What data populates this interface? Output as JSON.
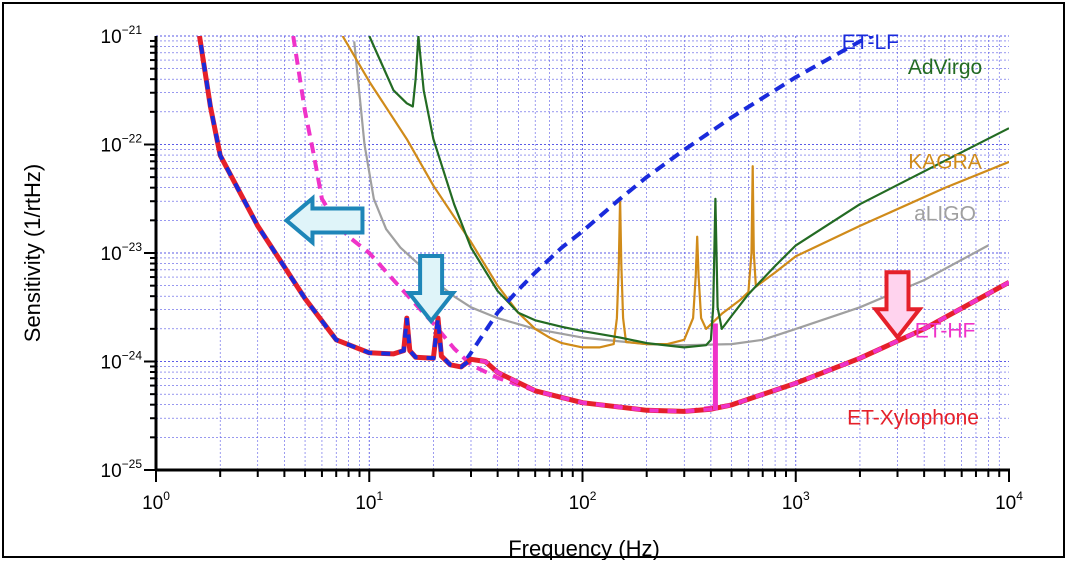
{
  "chart_data": {
    "type": "line",
    "title": "",
    "xlabel": "Frequency (Hz)",
    "ylabel": "Sensitivity (1/rtHz)",
    "xscale": "log",
    "yscale": "log",
    "xlim": [
      1,
      10000
    ],
    "ylim": [
      1e-25,
      1e-21
    ],
    "grid": true,
    "x_ticks": [
      {
        "base": "10",
        "exp": "0",
        "value": 1
      },
      {
        "base": "10",
        "exp": "1",
        "value": 10
      },
      {
        "base": "10",
        "exp": "2",
        "value": 100
      },
      {
        "base": "10",
        "exp": "3",
        "value": 1000
      },
      {
        "base": "10",
        "exp": "4",
        "value": 10000
      }
    ],
    "y_ticks": [
      {
        "base": "10",
        "exp": "−25",
        "value": 1e-25
      },
      {
        "base": "10",
        "exp": "−24",
        "value": 1e-24
      },
      {
        "base": "10",
        "exp": "−23",
        "value": 1e-23
      },
      {
        "base": "10",
        "exp": "−22",
        "value": 1e-22
      },
      {
        "base": "10",
        "exp": "−21",
        "value": 1e-21
      }
    ],
    "series": [
      {
        "name": "aLIGO",
        "color": "#a0a0a0",
        "dash": "solid",
        "width": 2.2,
        "label_pos": [
          3.7,
          -22.7
        ],
        "points": [
          [
            8.5,
            -21.05
          ],
          [
            9.5,
            -22.0
          ],
          [
            10.5,
            -22.5
          ],
          [
            12,
            -22.78
          ],
          [
            14,
            -22.95
          ],
          [
            17,
            -23.1
          ],
          [
            20,
            -23.25
          ],
          [
            25,
            -23.4
          ],
          [
            30,
            -23.5
          ],
          [
            40,
            -23.6
          ],
          [
            60,
            -23.7
          ],
          [
            100,
            -23.78
          ],
          [
            200,
            -23.84
          ],
          [
            300,
            -23.85
          ],
          [
            500,
            -23.84
          ],
          [
            700,
            -23.8
          ],
          [
            1000,
            -23.7
          ],
          [
            2000,
            -23.5
          ],
          [
            4000,
            -23.25
          ],
          [
            8000,
            -22.93
          ]
        ]
      },
      {
        "name": "KAGRA",
        "color": "#d08b1a",
        "dash": "solid",
        "width": 2.2,
        "label_pos": [
          3.7,
          -22.22
        ],
        "points": [
          [
            7.5,
            -21.0
          ],
          [
            10,
            -21.42
          ],
          [
            15,
            -21.95
          ],
          [
            20,
            -22.38
          ],
          [
            30,
            -22.9
          ],
          [
            40,
            -23.3
          ],
          [
            50,
            -23.55
          ],
          [
            60,
            -23.7
          ],
          [
            70,
            -23.78
          ],
          [
            80,
            -23.83
          ],
          [
            100,
            -23.87
          ],
          [
            120,
            -23.87
          ],
          [
            140,
            -23.84
          ],
          [
            145,
            -23.6
          ],
          [
            148,
            -23.1
          ],
          [
            150,
            -22.5
          ],
          [
            152,
            -23.1
          ],
          [
            155,
            -23.6
          ],
          [
            160,
            -23.82
          ],
          [
            200,
            -23.84
          ],
          [
            250,
            -23.84
          ],
          [
            300,
            -23.8
          ],
          [
            330,
            -23.6
          ],
          [
            340,
            -23.2
          ],
          [
            345,
            -22.85
          ],
          [
            350,
            -23.2
          ],
          [
            360,
            -23.6
          ],
          [
            380,
            -23.7
          ],
          [
            450,
            -23.56
          ],
          [
            550,
            -23.43
          ],
          [
            600,
            -23.36
          ],
          [
            620,
            -23.0
          ],
          [
            628,
            -22.2
          ],
          [
            636,
            -23.0
          ],
          [
            650,
            -23.31
          ],
          [
            800,
            -23.18
          ],
          [
            1000,
            -23.03
          ],
          [
            2000,
            -22.75
          ],
          [
            5000,
            -22.4
          ],
          [
            10000,
            -22.16
          ]
        ]
      },
      {
        "name": "AdVirgo",
        "color": "#236b23",
        "dash": "solid",
        "width": 2.2,
        "label_pos": [
          3.7,
          -21.35
        ],
        "points": [
          [
            10,
            -21.0
          ],
          [
            13,
            -21.5
          ],
          [
            15,
            -21.62
          ],
          [
            16,
            -21.65
          ],
          [
            16.5,
            -21.4
          ],
          [
            17,
            -21.0
          ],
          [
            18,
            -21.5
          ],
          [
            20,
            -21.95
          ],
          [
            25,
            -22.55
          ],
          [
            30,
            -22.95
          ],
          [
            40,
            -23.35
          ],
          [
            50,
            -23.55
          ],
          [
            60,
            -23.62
          ],
          [
            80,
            -23.68
          ],
          [
            100,
            -23.72
          ],
          [
            150,
            -23.78
          ],
          [
            200,
            -23.83
          ],
          [
            300,
            -23.87
          ],
          [
            380,
            -23.85
          ],
          [
            400,
            -23.8
          ],
          [
            410,
            -23.5
          ],
          [
            420,
            -22.5
          ],
          [
            430,
            -23.5
          ],
          [
            450,
            -23.7
          ],
          [
            500,
            -23.58
          ],
          [
            600,
            -23.38
          ],
          [
            800,
            -23.12
          ],
          [
            1000,
            -22.93
          ],
          [
            2000,
            -22.55
          ],
          [
            5000,
            -22.15
          ],
          [
            10000,
            -21.85
          ]
        ]
      },
      {
        "name": "ET-LF",
        "color": "#1a2bdc",
        "dash": "dashed",
        "width": 4,
        "label_pos": [
          3.35,
          -21.12
        ],
        "points": [
          [
            1.6,
            -21.0
          ],
          [
            1.8,
            -21.65
          ],
          [
            2,
            -22.1
          ],
          [
            3,
            -22.75
          ],
          [
            5,
            -23.42
          ],
          [
            7,
            -23.8
          ],
          [
            10,
            -23.92
          ],
          [
            13,
            -23.93
          ],
          [
            14.5,
            -23.9
          ],
          [
            15,
            -23.6
          ],
          [
            15.5,
            -23.9
          ],
          [
            16.5,
            -23.96
          ],
          [
            20,
            -23.97
          ],
          [
            21,
            -23.6
          ],
          [
            21.8,
            -23.95
          ],
          [
            24,
            -24.03
          ],
          [
            27,
            -24.05
          ],
          [
            30,
            -23.92
          ],
          [
            35,
            -23.72
          ],
          [
            40,
            -23.55
          ],
          [
            50,
            -23.34
          ],
          [
            60,
            -23.18
          ],
          [
            80,
            -22.95
          ],
          [
            100,
            -22.8
          ],
          [
            150,
            -22.5
          ],
          [
            200,
            -22.3
          ],
          [
            300,
            -22.05
          ],
          [
            500,
            -21.75
          ],
          [
            1000,
            -21.38
          ],
          [
            2000,
            -21.05
          ],
          [
            2300,
            -21.0
          ]
        ]
      },
      {
        "name": "ET-HF",
        "color": "#ef33c9",
        "dash": "dashed",
        "width": 4,
        "label_pos": [
          3.7,
          -23.78
        ],
        "points": [
          [
            4.4,
            -21.0
          ],
          [
            5,
            -21.7
          ],
          [
            5.5,
            -22.1
          ],
          [
            6,
            -22.5
          ],
          [
            7,
            -22.72
          ],
          [
            8,
            -22.85
          ],
          [
            10,
            -23.0
          ],
          [
            14,
            -23.32
          ],
          [
            20,
            -23.65
          ],
          [
            25,
            -23.88
          ],
          [
            30,
            -24.03
          ],
          [
            40,
            -24.15
          ],
          [
            60,
            -24.27
          ],
          [
            100,
            -24.38
          ],
          [
            200,
            -24.45
          ],
          [
            300,
            -24.46
          ],
          [
            500,
            -24.4
          ],
          [
            1000,
            -24.2
          ],
          [
            2000,
            -23.97
          ],
          [
            4000,
            -23.7
          ],
          [
            10000,
            -23.27
          ]
        ]
      },
      {
        "name": "ET-Xylophone",
        "color": "#e5202a",
        "dash": "solid",
        "width": 5,
        "label_pos": [
          3.55,
          -24.58
        ],
        "points": [
          [
            1.6,
            -21.0
          ],
          [
            1.8,
            -21.65
          ],
          [
            2,
            -22.1
          ],
          [
            3,
            -22.75
          ],
          [
            5,
            -23.42
          ],
          [
            7,
            -23.8
          ],
          [
            10,
            -23.92
          ],
          [
            13,
            -23.93
          ],
          [
            14.5,
            -23.9
          ],
          [
            15,
            -23.6
          ],
          [
            15.5,
            -23.9
          ],
          [
            16.5,
            -23.96
          ],
          [
            20,
            -23.97
          ],
          [
            21,
            -23.6
          ],
          [
            21.8,
            -23.95
          ],
          [
            24,
            -24.03
          ],
          [
            27,
            -24.05
          ],
          [
            30,
            -23.98
          ],
          [
            35,
            -24.0
          ],
          [
            40,
            -24.1
          ],
          [
            60,
            -24.27
          ],
          [
            100,
            -24.38
          ],
          [
            200,
            -24.45
          ],
          [
            300,
            -24.46
          ],
          [
            400,
            -24.44
          ],
          [
            500,
            -24.4
          ],
          [
            1000,
            -24.2
          ],
          [
            2000,
            -23.97
          ],
          [
            4000,
            -23.7
          ],
          [
            10000,
            -23.27
          ]
        ],
        "overlay": {
          "color": "#1a2bdc",
          "to_x": 30
        },
        "overlay2": {
          "color": "#ef33c9",
          "from_x": 30
        }
      }
    ],
    "annotations": [
      {
        "type": "vertical-line",
        "name": "et-hf-notch-line",
        "x": 420,
        "y_from": -24.45,
        "y_to": -23.65,
        "color": "#ef33c9"
      },
      {
        "type": "arrow-left",
        "name": "low-frequency-improvement-arrow",
        "x": 6.3,
        "y": -22.7,
        "fill": "#dff4f9",
        "stroke": "#1e86b8"
      },
      {
        "type": "arrow-down",
        "name": "mid-frequency-improvement-arrow",
        "x": 19.5,
        "y": -23.35,
        "fill": "#dff4f9",
        "stroke": "#1e86b8"
      },
      {
        "type": "arrow-down",
        "name": "high-frequency-improvement-arrow",
        "x": 3000,
        "y": -23.5,
        "fill": "#ffd3ee",
        "stroke": "#e5202a"
      }
    ]
  }
}
